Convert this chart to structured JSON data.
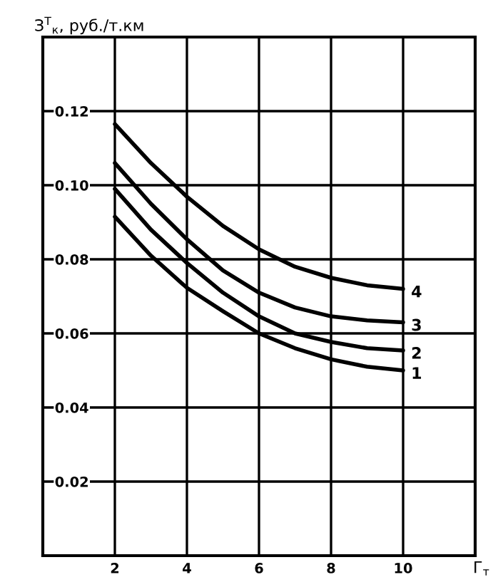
{
  "chart_data": {
    "type": "line",
    "ylabel": "З$^{Т}$$_{к}$, руб./т.км",
    "xlabel": "Г$_{т}$",
    "x": [
      2,
      3,
      4,
      5,
      6,
      7,
      8,
      9,
      10
    ],
    "series": [
      {
        "name": "1",
        "color": "#000000",
        "values": [
          0.0915,
          0.081,
          0.0723,
          0.066,
          0.06,
          0.056,
          0.053,
          0.051,
          0.05
        ]
      },
      {
        "name": "2",
        "color": "#000000",
        "values": [
          0.099,
          0.088,
          0.079,
          0.071,
          0.0646,
          0.06,
          0.0577,
          0.056,
          0.0554
        ]
      },
      {
        "name": "3",
        "color": "#000000",
        "values": [
          0.106,
          0.095,
          0.0854,
          0.077,
          0.071,
          0.067,
          0.0646,
          0.0635,
          0.063
        ]
      },
      {
        "name": "4",
        "color": "#000000",
        "values": [
          0.1165,
          0.106,
          0.0969,
          0.089,
          0.0827,
          0.078,
          0.075,
          0.073,
          0.072
        ]
      }
    ],
    "xlim": [
      0,
      12
    ],
    "ylim": [
      0,
      0.14
    ],
    "xticks": [
      {
        "value": 0,
        "label": null
      },
      2,
      4,
      6,
      8,
      10,
      {
        "value": 12,
        "label": null
      }
    ],
    "yticks": [
      {
        "value": 0,
        "label": null
      },
      0.02,
      0.04,
      0.06,
      0.08,
      {
        "value": 0.1,
        "label": "0.10"
      },
      0.12,
      {
        "value": 0.14,
        "label": null
      }
    ],
    "grid": true,
    "legend": false,
    "marker": "none",
    "line_style": "solid"
  }
}
